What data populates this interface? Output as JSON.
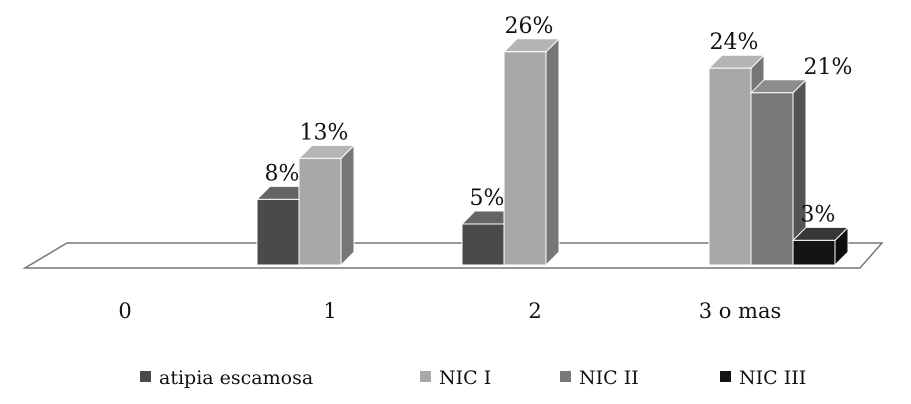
{
  "chart_data": {
    "type": "bar",
    "style": "3d-clustered",
    "categories": [
      "0",
      "1",
      "2",
      "3 o mas"
    ],
    "series": [
      {
        "name": "atipia escamosa",
        "color": "#4a4a4a",
        "values": [
          null,
          8,
          5,
          null
        ]
      },
      {
        "name": "NIC I",
        "color": "#a8a8a8",
        "values": [
          null,
          13,
          26,
          24
        ]
      },
      {
        "name": "NIC II",
        "color": "#787878",
        "values": [
          null,
          null,
          null,
          21
        ]
      },
      {
        "name": "NIC III",
        "color": "#141414",
        "values": [
          null,
          null,
          null,
          3
        ]
      }
    ],
    "value_suffix": "%",
    "title": "",
    "xlabel": "",
    "ylabel": "",
    "ylim": [
      0,
      30
    ],
    "grid": false,
    "legend": "bottom"
  }
}
